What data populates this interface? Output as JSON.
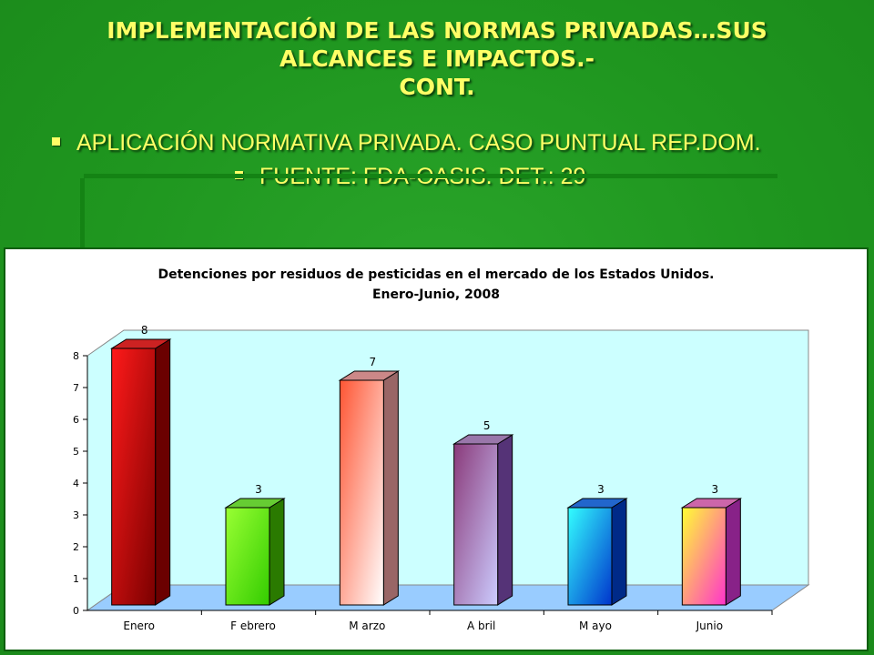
{
  "slide": {
    "title_lines": [
      "IMPLEMENTACIÓN DE LAS NORMAS PRIVADAS…SUS",
      "ALCANCES E IMPACTOS.-",
      "CONT."
    ],
    "bullet1": "APLICACIÓN NORMATIVA PRIVADA.  CASO PUNTUAL REP.DOM.",
    "bullet2": "FUENTE:  FDA-OASIS.  DET.:  29"
  },
  "colors": {
    "background": "#1f9a1f",
    "title_text": "#ffff66",
    "plot_wall": "#ccffff",
    "plot_floor": "#99ccff"
  },
  "chart_data": {
    "type": "bar",
    "title": "Detenciones por residuos de pesticidas en el mercado de los Estados Unidos.",
    "subtitle": "Enero-Junio, 2008",
    "categories": [
      "Enero",
      "Febrero",
      "Marzo",
      "Abril",
      "Mayo",
      "Junio"
    ],
    "category_labels": [
      "Enero",
      "F ebrero",
      "M arzo",
      "A bril",
      "M ayo",
      "Junio"
    ],
    "values": [
      8,
      3,
      7,
      5,
      3,
      3
    ],
    "ylim": [
      0,
      8
    ],
    "yticks": [
      0,
      1,
      2,
      3,
      4,
      5,
      6,
      7,
      8
    ],
    "xlabel": "",
    "ylabel": "",
    "grid": false,
    "legend": "none",
    "bar_colors": [
      {
        "front_top": "#ff1a1a",
        "front_bottom": "#7a0000",
        "side": "#6b0000",
        "top": "#cc2222"
      },
      {
        "front_top": "#99ff33",
        "front_bottom": "#33cc00",
        "side": "#2a7a00",
        "top": "#66cc33"
      },
      {
        "front_top": "#ff5533",
        "front_bottom": "#ffffff",
        "side": "#996666",
        "top": "#cc8888"
      },
      {
        "front_top": "#8a3a7a",
        "front_bottom": "#ccccff",
        "side": "#553377",
        "top": "#9977aa"
      },
      {
        "front_top": "#33ffff",
        "front_bottom": "#0033cc",
        "side": "#002a88",
        "top": "#2266cc"
      },
      {
        "front_top": "#ffff33",
        "front_bottom": "#ff33cc",
        "side": "#882288",
        "top": "#cc66aa"
      }
    ]
  }
}
